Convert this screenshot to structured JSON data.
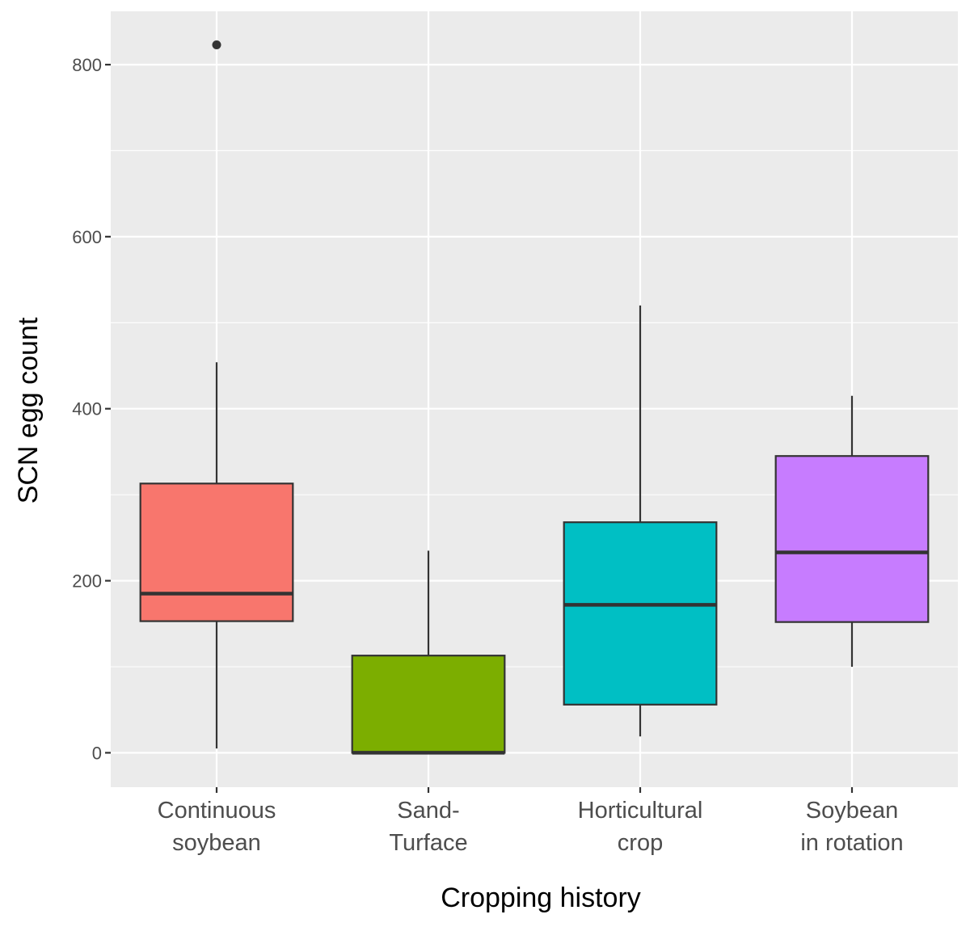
{
  "chart_data": {
    "type": "boxplot",
    "xlabel": "Cropping history",
    "ylabel": "SCN egg count",
    "ylim": [
      -40,
      862
    ],
    "yticks": [
      0,
      200,
      400,
      600,
      800
    ],
    "ytick_labels": [
      "0",
      "200",
      "400",
      "600",
      "800"
    ],
    "grid": true,
    "colors": {
      "panel": "#EBEBEB",
      "grid": "#FFFFFF",
      "stroke": "#333333",
      "tick_text": "#4D4D4D"
    },
    "categories": [
      {
        "label_lines": [
          "Continuous",
          "soybean"
        ],
        "fill": "#F8766D",
        "whisker_low": 5,
        "q1": 153,
        "median": 185,
        "q3": 313,
        "whisker_high": 454,
        "outliers": [
          823
        ]
      },
      {
        "label_lines": [
          "Sand-",
          "Turface"
        ],
        "fill": "#7CAE00",
        "whisker_low": 0,
        "q1": 0,
        "median": 0,
        "q3": 113,
        "whisker_high": 235,
        "outliers": []
      },
      {
        "label_lines": [
          "Horticultural",
          "crop"
        ],
        "fill": "#00BFC4",
        "whisker_low": 19,
        "q1": 56,
        "median": 172,
        "q3": 268,
        "whisker_high": 520,
        "outliers": []
      },
      {
        "label_lines": [
          "Soybean",
          "in rotation"
        ],
        "fill": "#C77CFF",
        "whisker_low": 100,
        "q1": 152,
        "median": 233,
        "q3": 345,
        "whisker_high": 415,
        "outliers": []
      }
    ]
  }
}
